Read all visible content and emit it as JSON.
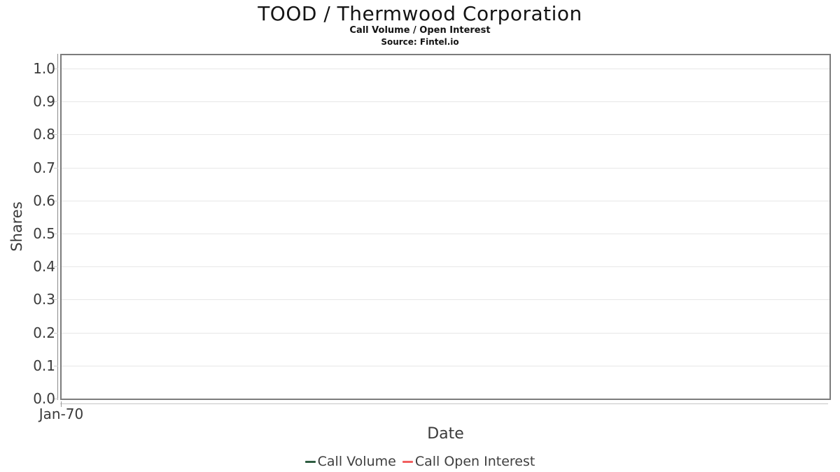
{
  "header": {
    "title": "TOOD / Thermwood Corporation",
    "subtitle": "Call Volume / Open Interest",
    "source": "Source: Fintel.io"
  },
  "chart_data": {
    "type": "line",
    "title": "TOOD / Thermwood Corporation",
    "subtitle": "Call Volume / Open Interest",
    "source": "Source: Fintel.io",
    "xlabel": "Date",
    "ylabel": "Shares",
    "ylim": [
      0.0,
      1.05
    ],
    "yticks": [
      "1.0",
      "0.9",
      "0.8",
      "0.7",
      "0.6",
      "0.5",
      "0.4",
      "0.3",
      "0.2",
      "0.1",
      "0.0"
    ],
    "xticks": [
      "Jan-70"
    ],
    "grid": "horizontal",
    "legend_position": "bottom",
    "plot_is_empty": true,
    "series": [
      {
        "name": "Call Volume",
        "color": "#2e5c41",
        "x": [],
        "values": []
      },
      {
        "name": "Call Open Interest",
        "color": "#f25f5f",
        "x": [],
        "values": []
      }
    ]
  },
  "colors": {
    "plot_border": "#7c7c7c",
    "gridline": "#e7e7e7",
    "axis_text": "#3a3a3a",
    "title_text": "#141414",
    "call_volume": "#2e5c41",
    "call_open_interest": "#f25f5f"
  }
}
